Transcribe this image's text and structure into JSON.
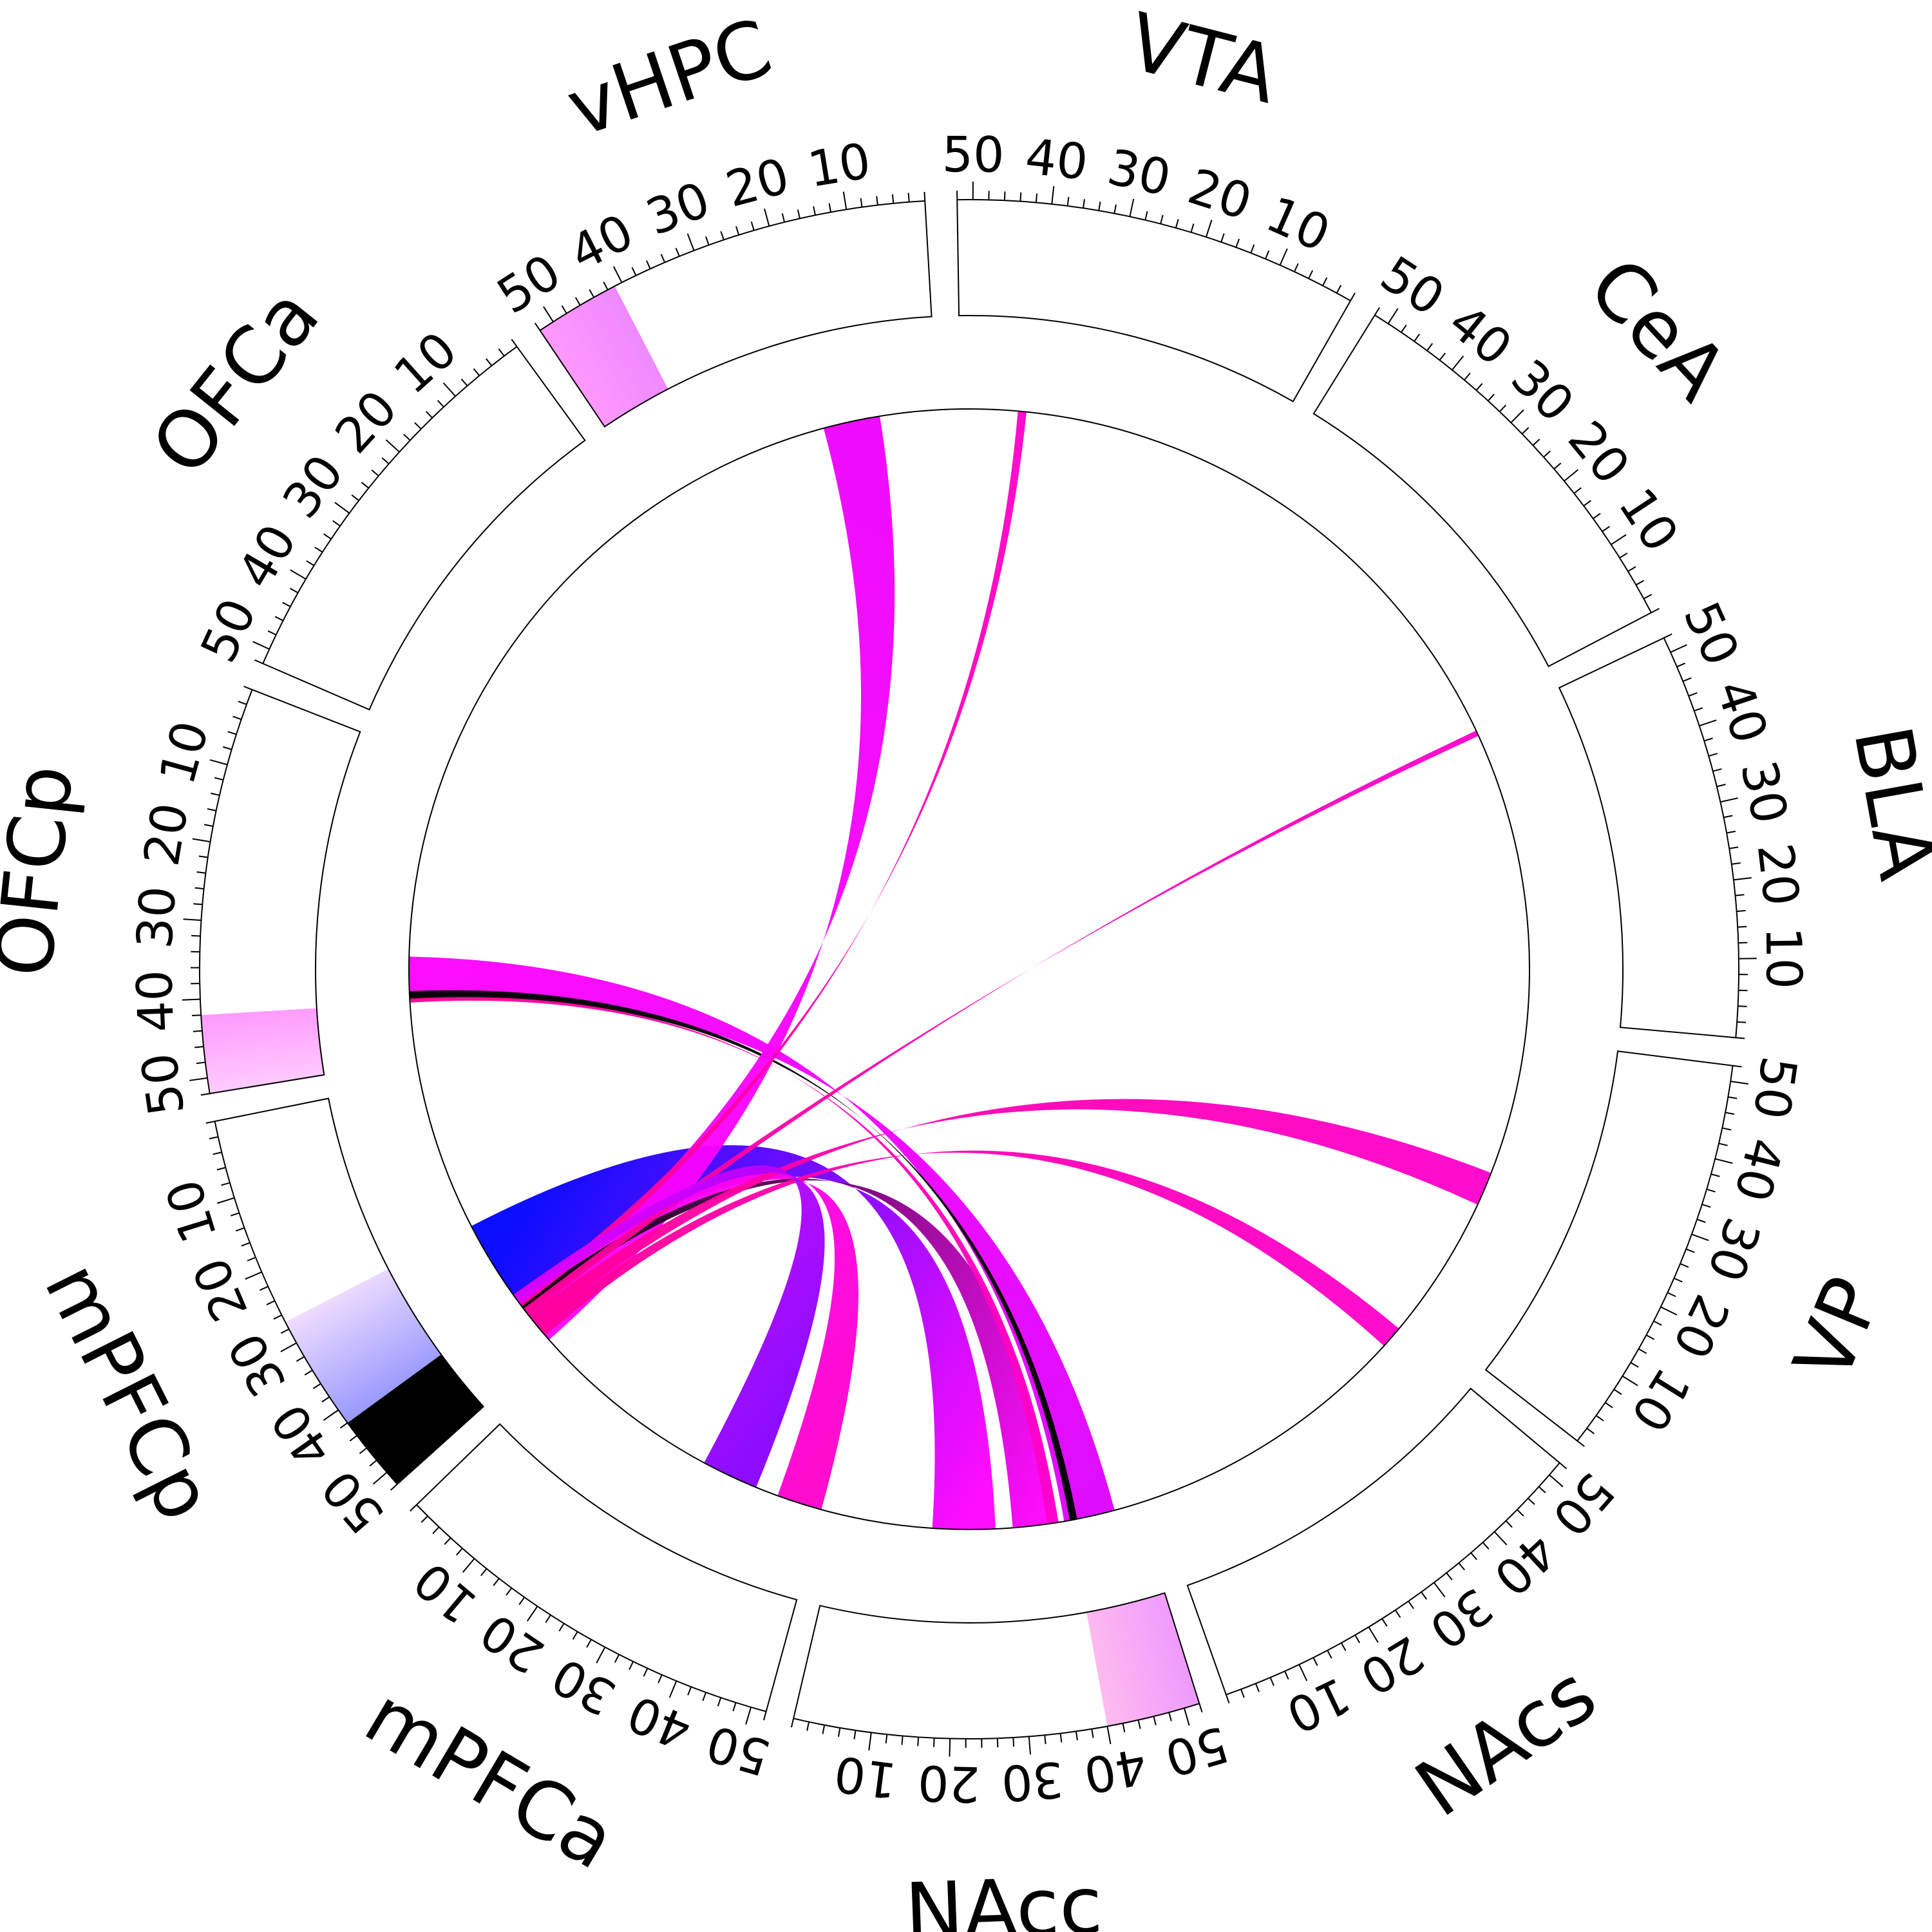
{
  "palette": {
    "black": "#000000",
    "blue": "#0000ff",
    "magenta": "#ff00ff",
    "pink": "#ff0099"
  },
  "sectors": [
    {
      "name": "VTA",
      "ticks": [
        "10",
        "20",
        "30",
        "40",
        "50"
      ]
    },
    {
      "name": "CeA",
      "ticks": [
        "10",
        "20",
        "30",
        "40",
        "50"
      ]
    },
    {
      "name": "BLA",
      "ticks": [
        "10",
        "20",
        "30",
        "40",
        "50"
      ]
    },
    {
      "name": "VP",
      "ticks": [
        "10",
        "20",
        "30",
        "40",
        "50"
      ]
    },
    {
      "name": "NAcs",
      "ticks": [
        "10",
        "20",
        "30",
        "40",
        "50"
      ]
    },
    {
      "name": "NAcc",
      "ticks": [
        "10",
        "20",
        "30",
        "40",
        "50"
      ]
    },
    {
      "name": "mPFCa",
      "ticks": [
        "10",
        "20",
        "30",
        "40",
        "50"
      ]
    },
    {
      "name": "mPFCp",
      "ticks": [
        "10",
        "20",
        "30",
        "40",
        "50"
      ]
    },
    {
      "name": "OFCp",
      "ticks": [
        "10",
        "20",
        "30",
        "40",
        "50"
      ]
    },
    {
      "name": "OFCa",
      "ticks": [
        "10",
        "20",
        "30",
        "40",
        "50"
      ]
    },
    {
      "name": "vHPC",
      "ticks": [
        "10",
        "20",
        "30",
        "40",
        "50"
      ]
    }
  ],
  "sector_range": [
    0,
    52
  ],
  "sector_fills": [
    {
      "sector": "vHPC",
      "from": 41,
      "to": 52,
      "colors": [
        "#ff99ff",
        "#ee88ff"
      ]
    },
    {
      "sector": "OFCp",
      "from": 42,
      "to": 52,
      "colors": [
        "#ffccff",
        "#ff99ff"
      ]
    },
    {
      "sector": "mPFCp",
      "from": 42,
      "to": 52,
      "colors": [
        "#000000",
        "#000000"
      ]
    },
    {
      "sector": "mPFCp",
      "from": 27,
      "to": 42,
      "colors": [
        "#9999ff",
        "#f0ddff"
      ]
    },
    {
      "sector": "NAcc",
      "from": 40,
      "to": 52,
      "colors": [
        "#ee99ff",
        "#ffbbee"
      ]
    }
  ],
  "chord_data": {
    "type": "chord",
    "links": [
      {
        "from": "mPFCp",
        "from_range": [
          27,
          42
        ],
        "to": "NAcc",
        "to_range": [
          16,
          27
        ],
        "colors": [
          "#0000ff",
          "#ff00ff"
        ]
      },
      {
        "from": "OFCp",
        "from_range": [
          34,
          41
        ],
        "to": "NAcc",
        "to_range": [
          39,
          48
        ],
        "colors": [
          "#ff00ff",
          "#dd00ff"
        ]
      },
      {
        "from": "OFCp",
        "from_range": [
          40,
          41.5
        ],
        "to": "NAcc",
        "to_range": [
          40,
          41.3
        ],
        "colors": [
          "#000000",
          "#000000"
        ]
      },
      {
        "from": "mPFCp",
        "from_range": [
          43,
          51
        ],
        "to": "vHPC",
        "to_range": [
          10,
          20
        ],
        "colors": [
          "#ff00ff",
          "#ee00ff"
        ]
      },
      {
        "from": "mPFCp",
        "from_range": [
          42.5,
          45
        ],
        "to": "mPFCa",
        "to_range": [
          44,
          52
        ],
        "colors": [
          "#ff00ff",
          "#ff00cc"
        ]
      },
      {
        "from": "mPFCp",
        "from_range": [
          43,
          44.5
        ],
        "to": "NAcc",
        "to_range": [
          30,
          38
        ],
        "colors": [
          "#000000",
          "#ff00ff"
        ]
      },
      {
        "from": "mPFCp",
        "from_range": [
          42,
          43.5
        ],
        "to": "VTA",
        "to_range": [
          40.5,
          42
        ],
        "colors": [
          "#ff0099",
          "#ff00cc"
        ]
      },
      {
        "from": "mPFCp",
        "from_range": [
          44,
          45.5
        ],
        "to": "BLA",
        "to_range": [
          50.5,
          51.5
        ],
        "colors": [
          "#ff0099",
          "#ff00cc"
        ]
      },
      {
        "from": "mPFCp",
        "from_range": [
          45.5,
          48
        ],
        "to": "VP",
        "to_range": [
          22,
          28
        ],
        "colors": [
          "#ff0099",
          "#ff00cc"
        ]
      },
      {
        "from": "mPFCp",
        "from_range": [
          48,
          50
        ],
        "to": "NAcs",
        "to_range": [
          48,
          52
        ],
        "colors": [
          "#ff0099",
          "#ff00cc"
        ]
      },
      {
        "from": "mPFCp",
        "from_range": [
          41,
          43
        ],
        "to": "mPFCa",
        "to_range": [
          30,
          40
        ],
        "colors": [
          "#dd00ff",
          "#8800ff"
        ]
      },
      {
        "from": "OFCp",
        "from_range": [
          41.3,
          42
        ],
        "to": "NAcc",
        "to_range": [
          36,
          38
        ],
        "colors": [
          "#ff0099",
          "#ff00cc"
        ]
      }
    ]
  }
}
